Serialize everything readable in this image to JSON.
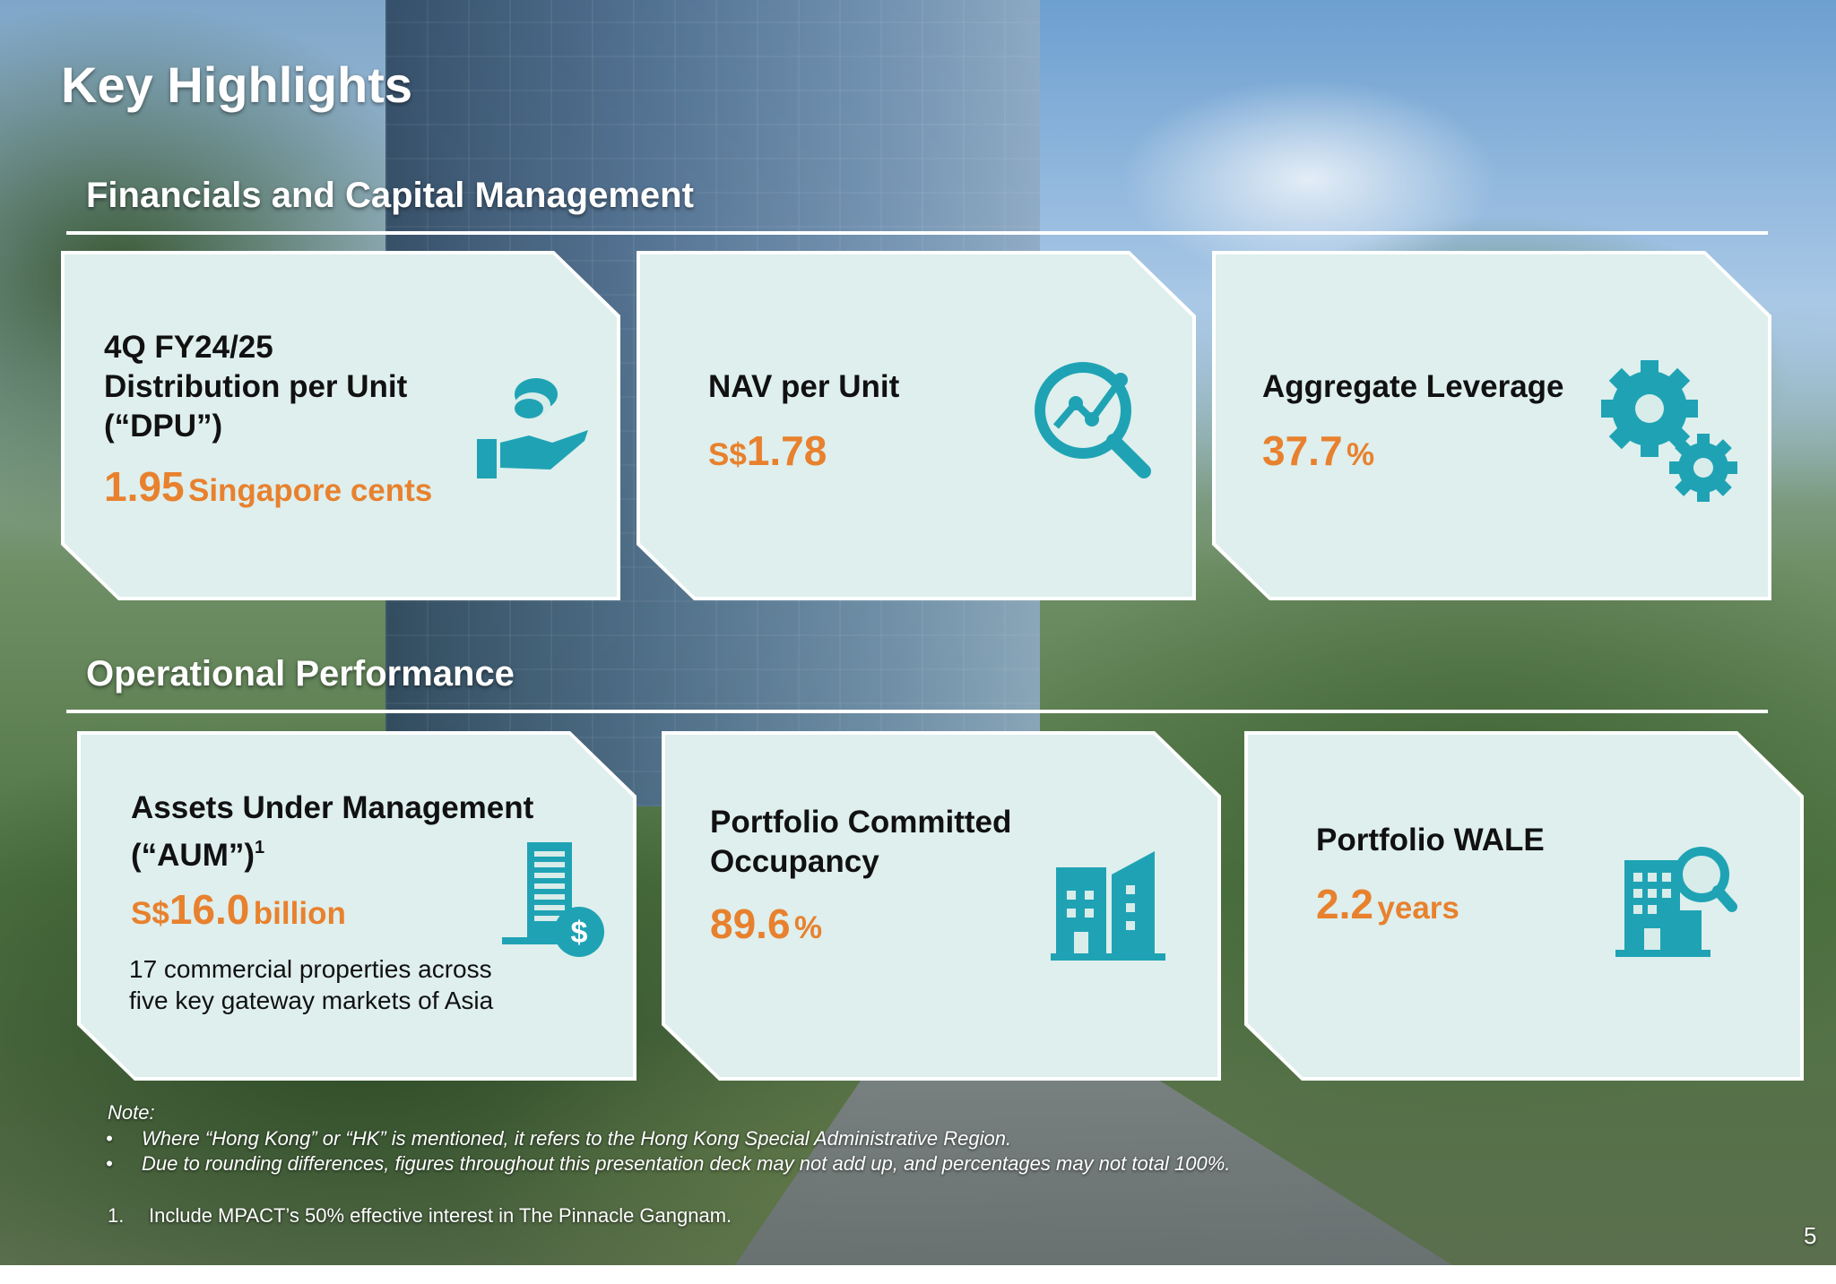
{
  "page_title": "Key Highlights",
  "financials": {
    "section_title": "Financials and Capital Management",
    "dpu": {
      "label_lines": [
        "4Q FY24/25",
        "Distribution per Unit",
        "(“DPU”)"
      ],
      "value": "1.95",
      "unit": "Singapore cents",
      "icon": "hand-coins-icon"
    },
    "nav": {
      "label": "NAV per Unit",
      "currency": "S$",
      "value": "1.78",
      "icon": "analytics-magnifier-icon"
    },
    "leverage": {
      "label": "Aggregate Leverage",
      "value": "37.7",
      "unit": "%",
      "icon": "gears-icon"
    }
  },
  "operations": {
    "section_title": "Operational Performance",
    "aum": {
      "label_lines": [
        "Assets Under Management",
        "(“AUM”)"
      ],
      "footnote_ref": "1",
      "currency": "S$",
      "value": "16.0",
      "unit": "billion",
      "description_lines": [
        "17 commercial properties across",
        "five key gateway markets of Asia"
      ],
      "icon": "building-dollar-icon"
    },
    "occupancy": {
      "label_lines": [
        "Portfolio Committed",
        "Occupancy"
      ],
      "value": "89.6",
      "unit": "%",
      "icon": "office-buildings-icon"
    },
    "wale": {
      "label": "Portfolio WALE",
      "value": "2.2",
      "unit": "years",
      "icon": "building-search-icon"
    }
  },
  "notes": {
    "heading": "Note:",
    "bullet_char": "•",
    "bullets": [
      "Where “Hong Kong” or “HK” is mentioned, it refers to the Hong Kong Special Administrative Region.",
      "Due to rounding differences, figures throughout this presentation deck may not add up, and percentages may not total 100%."
    ],
    "footnote_number": "1.",
    "footnote_text": "Include MPACT’s 50% effective interest in The Pinnacle Gangnam."
  },
  "page_number": "5",
  "colors": {
    "accent_orange": "#e8812e",
    "icon_teal": "#1fa3b4",
    "card_fill": "#d8ecea"
  }
}
